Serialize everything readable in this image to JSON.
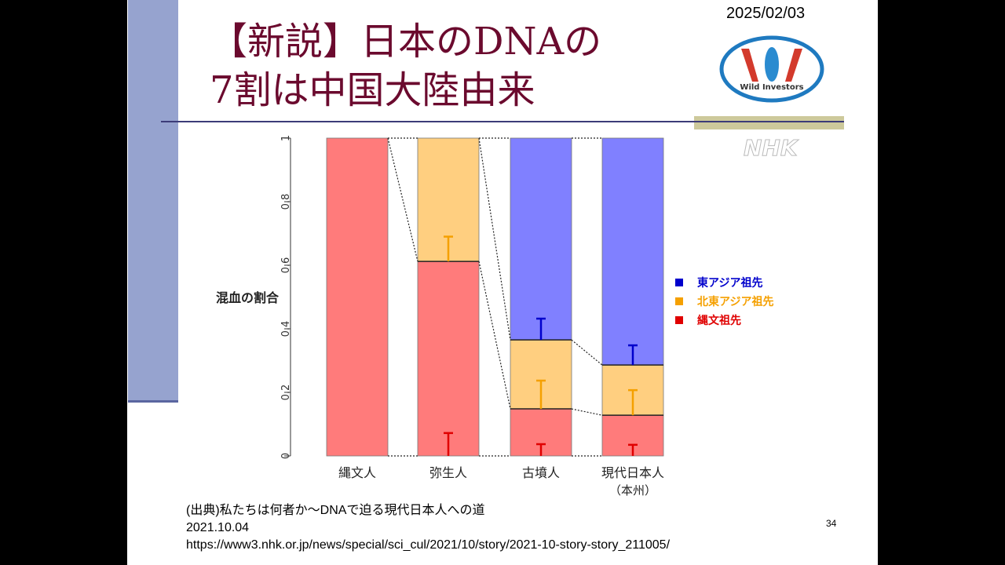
{
  "slide": {
    "title_lines": [
      "【新説】日本のDNAの",
      "7割は中国大陸由来"
    ],
    "date": "2025/02/03",
    "logo_text": "Wild Investors",
    "watermark": "NHK",
    "source_lines": [
      "(出典)私たちは何者か〜DNAで迫る現代日本人への道",
      "2021.10.04",
      "https://www3.nhk.or.jp/news/special/sci_cul/2021/10/story/2021-10-story-story_211005/"
    ],
    "page_number": "34"
  },
  "chart_data": {
    "type": "bar",
    "stacked": true,
    "ylabel": "混血の割合",
    "ylim": [
      0,
      1
    ],
    "yticks": [
      "0",
      "0.2",
      "0.4",
      "0.6",
      "0.8",
      "1"
    ],
    "categories": [
      "縄文人",
      "弥生人",
      "古墳人",
      "現代日本人"
    ],
    "category_sublabels": [
      "",
      "",
      "",
      "（本州）"
    ],
    "legend_position": "right",
    "series": [
      {
        "name": "縄文祖先",
        "color": "#ff7b7b",
        "legend_color": "#e00000",
        "error_color": "#e00000",
        "values": [
          1.0,
          0.612,
          0.148,
          0.128
        ],
        "error_top": [
          null,
          0.072,
          0.037,
          0.035
        ]
      },
      {
        "name": "北東アジア祖先",
        "color": "#ffcf80",
        "legend_color": "#f5a000",
        "error_color": "#f5a000",
        "values": [
          0,
          0.388,
          0.217,
          0.158
        ],
        "error_top": [
          null,
          0.69,
          0.237,
          0.207
        ]
      },
      {
        "name": "東アジア祖先",
        "color": "#8080ff",
        "legend_color": "#0000cc",
        "error_color": "#0000cc",
        "values": [
          0,
          0,
          0.635,
          0.714
        ],
        "error_top": [
          null,
          null,
          0.432,
          0.348
        ]
      }
    ],
    "legend_order": [
      "東アジア祖先",
      "北東アジア祖先",
      "縄文祖先"
    ]
  }
}
